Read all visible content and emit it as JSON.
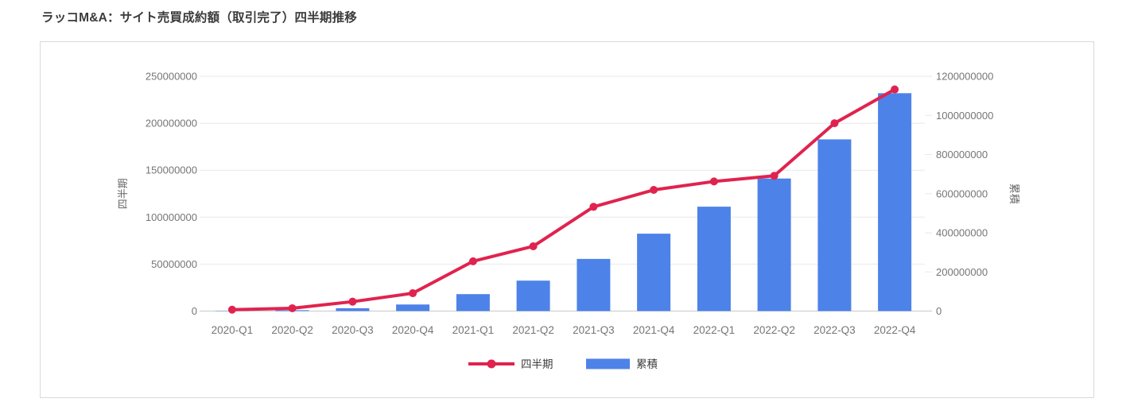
{
  "title": "ラッコM&A：サイト売買成約額（取引完了）四半期推移",
  "colors": {
    "line": "#e0234e",
    "bar": "#4d82e8",
    "grid": "#e8e8e8",
    "baseline": "#c9c9c9",
    "tick_text": "#757575",
    "axis_title_text": "#666666",
    "title_text": "#3b3b3b",
    "legend_text": "#3c3c3c",
    "frame_border": "#d9d9d9",
    "background": "#ffffff"
  },
  "chart_data": {
    "type": "combo-line-bar",
    "title": "ラッコM&A：サイト売買成約額（取引完了）四半期推移",
    "categories": [
      "2020-Q1",
      "2020-Q2",
      "2020-Q3",
      "2020-Q4",
      "2021-Q1",
      "2021-Q2",
      "2021-Q3",
      "2021-Q4",
      "2022-Q1",
      "2022-Q2",
      "2022-Q3",
      "2022-Q4"
    ],
    "series": [
      {
        "name": "四半期",
        "type": "line",
        "axis": "left",
        "color": "#e0234e",
        "values": [
          1500000,
          3000000,
          10000000,
          19000000,
          53000000,
          69000000,
          111000000,
          129000000,
          138000000,
          144000000,
          200000000,
          236000000
        ]
      },
      {
        "name": "累積",
        "type": "bar",
        "axis": "right",
        "color": "#4d82e8",
        "values": [
          1500000,
          4500000,
          14500000,
          33500000,
          86500000,
          155500000,
          266500000,
          395500000,
          533500000,
          677500000,
          877500000,
          1113500000
        ]
      }
    ],
    "left_axis": {
      "label": "四半期",
      "min": 0,
      "max": 250000000,
      "ticks": [
        0,
        50000000,
        100000000,
        150000000,
        200000000,
        250000000
      ]
    },
    "right_axis": {
      "label": "累積",
      "min": 0,
      "max": 1200000000,
      "ticks": [
        0,
        200000000,
        400000000,
        600000000,
        800000000,
        1000000000,
        1200000000
      ]
    },
    "legend": {
      "position": "bottom",
      "items": [
        "四半期",
        "累積"
      ]
    },
    "grid": true,
    "xlabel": "",
    "ylabel_left": "四半期",
    "ylabel_right": "累積"
  }
}
